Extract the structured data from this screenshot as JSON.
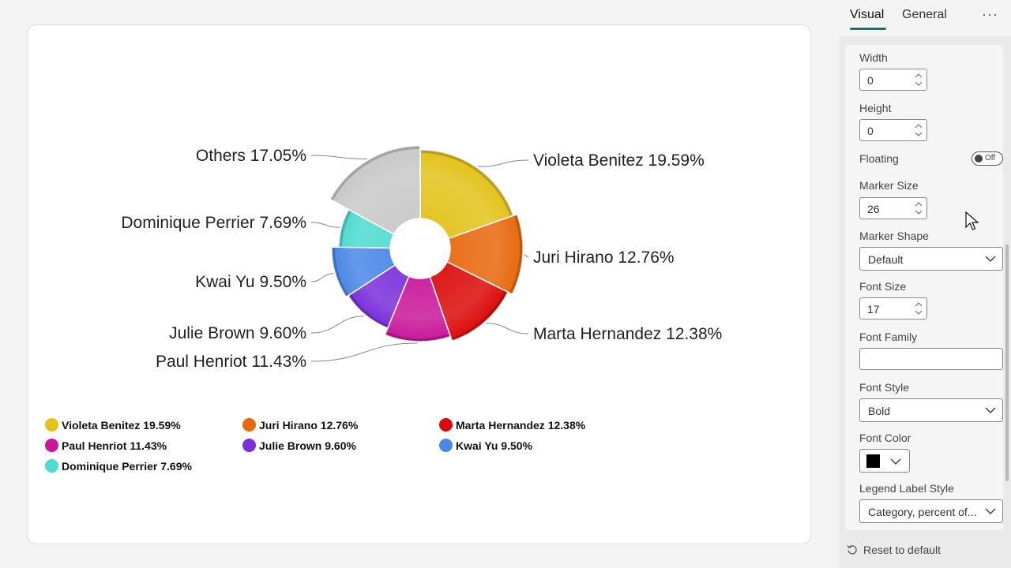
{
  "chart_data": {
    "type": "pie",
    "slices": [
      {
        "label": "Violeta Benitez",
        "value": 19.59,
        "display": "Violeta Benitez 19.59%",
        "color": "#e3c21a"
      },
      {
        "label": "Juri Hirano",
        "value": 12.76,
        "display": "Juri Hirano 12.76%",
        "color": "#e8680d"
      },
      {
        "label": "Marta Hernandez",
        "value": 12.38,
        "display": "Marta Hernandez 12.38%",
        "color": "#dc0b0b"
      },
      {
        "label": "Paul Henriot",
        "value": 11.43,
        "display": "Paul Henriot 11.43%",
        "color": "#c9179a"
      },
      {
        "label": "Julie Brown",
        "value": 9.6,
        "display": "Julie Brown 9.60%",
        "color": "#7a2fdb"
      },
      {
        "label": "Kwai Yu",
        "value": 9.5,
        "display": "Kwai Yu 9.50%",
        "color": "#4a87e6"
      },
      {
        "label": "Dominique Perrier",
        "value": 7.69,
        "display": "Dominique Perrier 7.69%",
        "color": "#4edbd0"
      },
      {
        "label": "Others",
        "value": 17.05,
        "display": "Others 17.05%",
        "color": "#c8c8c8"
      }
    ],
    "legend": [
      {
        "text": "Violeta Benitez 19.59%",
        "color": "#e3c21a"
      },
      {
        "text": "Juri Hirano 12.76%",
        "color": "#e8680d"
      },
      {
        "text": "Marta Hernandez 12.38%",
        "color": "#dc0b0b"
      },
      {
        "text": "Paul Henriot 11.43%",
        "color": "#c9179a"
      },
      {
        "text": "Julie Brown 9.60%",
        "color": "#7a2fdb"
      },
      {
        "text": "Kwai Yu 9.50%",
        "color": "#4a87e6"
      },
      {
        "text": "Dominique Perrier 7.69%",
        "color": "#4edbd0"
      }
    ],
    "legend_placement": "bottom-left"
  },
  "pane": {
    "tabs": {
      "visual": "Visual",
      "general": "General",
      "more": "···"
    },
    "width": {
      "label": "Width",
      "value": "0"
    },
    "height": {
      "label": "Height",
      "value": "0"
    },
    "floating": {
      "label": "Floating",
      "state": "Off"
    },
    "marker_size": {
      "label": "Marker Size",
      "value": "26"
    },
    "marker_shape": {
      "label": "Marker Shape",
      "value": "Default"
    },
    "font_size": {
      "label": "Font Size",
      "value": "17"
    },
    "font_family": {
      "label": "Font Family",
      "value": ""
    },
    "font_style": {
      "label": "Font Style",
      "value": "Bold"
    },
    "font_color": {
      "label": "Font Color",
      "value": "#000000"
    },
    "legend_label_style": {
      "label": "Legend Label Style",
      "value": "Category, percent of..."
    },
    "reset": "Reset to default",
    "accent": "#117865"
  }
}
